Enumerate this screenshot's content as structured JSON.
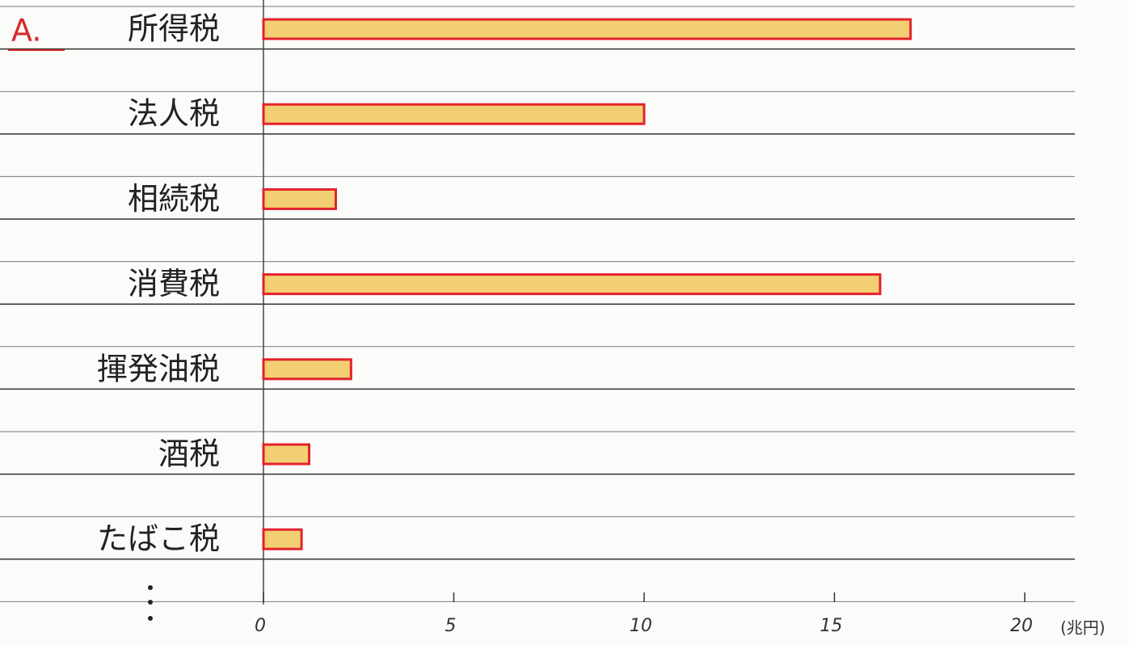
{
  "chart_data": {
    "type": "bar",
    "orientation": "horizontal",
    "title": "A.",
    "categories": [
      "所得税",
      "法人税",
      "相続税",
      "消費税",
      "揮発油税",
      "酒税",
      "たばこ税"
    ],
    "values": [
      17,
      10,
      1.9,
      16.2,
      2.3,
      1.2,
      1.0
    ],
    "color": "#f2cf72",
    "edge_color": "#e3222c",
    "xlim": [
      0,
      20
    ],
    "xticks": [
      0,
      5,
      10,
      15,
      20
    ],
    "xlabel": "(兆円)"
  }
}
